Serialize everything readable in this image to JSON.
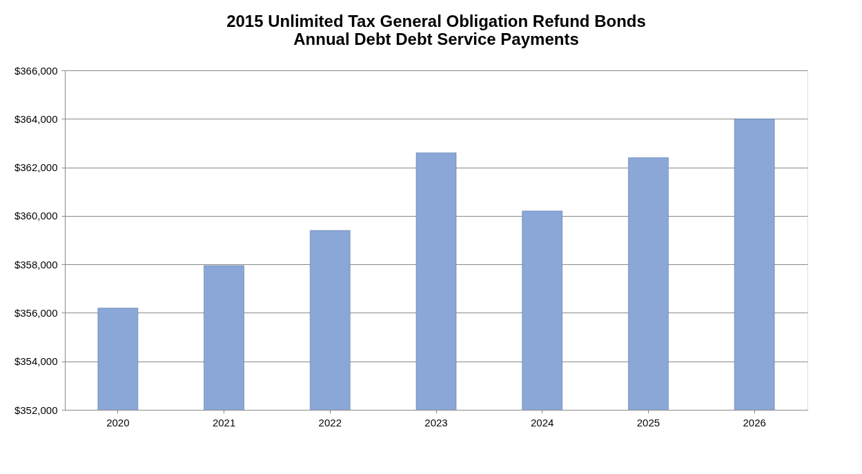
{
  "chart_data": {
    "type": "bar",
    "title": [
      "2015 Unlimited Tax General Obligation Refund Bonds",
      "Annual Debt Debt Service Payments"
    ],
    "categories": [
      "2020",
      "2021",
      "2022",
      "2023",
      "2024",
      "2025",
      "2026"
    ],
    "values": [
      356200,
      357950,
      359400,
      362600,
      360200,
      362400,
      364000
    ],
    "color": "#8ba7d8",
    "ylim": [
      352000,
      366000
    ],
    "yticks": [
      {
        "value": 352000,
        "label": "$352,000"
      },
      {
        "value": 354000,
        "label": "$354,000"
      },
      {
        "value": 356000,
        "label": "$356,000"
      },
      {
        "value": 358000,
        "label": "$358,000"
      },
      {
        "value": 360000,
        "label": "$360,000"
      },
      {
        "value": 362000,
        "label": "$362,000"
      },
      {
        "value": 364000,
        "label": "$364,000"
      },
      {
        "value": 366000,
        "label": "$366,000"
      }
    ],
    "grid": "y"
  }
}
